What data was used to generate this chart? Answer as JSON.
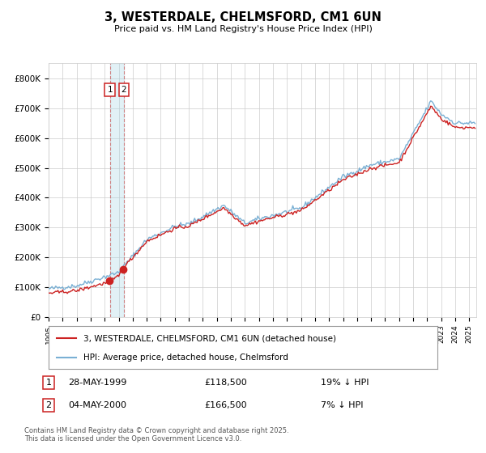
{
  "title": "3, WESTERDALE, CHELMSFORD, CM1 6UN",
  "subtitle": "Price paid vs. HM Land Registry's House Price Index (HPI)",
  "red_label": "3, WESTERDALE, CHELMSFORD, CM1 6UN (detached house)",
  "blue_label": "HPI: Average price, detached house, Chelmsford",
  "annotation1": {
    "num": "1",
    "date": "28-MAY-1999",
    "price": "£118,500",
    "hpi": "19% ↓ HPI"
  },
  "annotation2": {
    "num": "2",
    "date": "04-MAY-2000",
    "price": "£166,500",
    "hpi": "7% ↓ HPI"
  },
  "footer": "Contains HM Land Registry data © Crown copyright and database right 2025.\nThis data is licensed under the Open Government Licence v3.0.",
  "ylim": [
    0,
    850000
  ],
  "yticks": [
    0,
    100000,
    200000,
    300000,
    400000,
    500000,
    600000,
    700000,
    800000
  ],
  "ytick_labels": [
    "£0",
    "£100K",
    "£200K",
    "£300K",
    "£400K",
    "£500K",
    "£600K",
    "£700K",
    "£800K"
  ],
  "background_color": "#ffffff",
  "grid_color": "#cccccc",
  "red_color": "#cc2222",
  "blue_color": "#7ab0d4",
  "sale1_x": 1999.37,
  "sale2_x": 2000.37,
  "sale1_price": 118500,
  "sale2_price": 166500
}
